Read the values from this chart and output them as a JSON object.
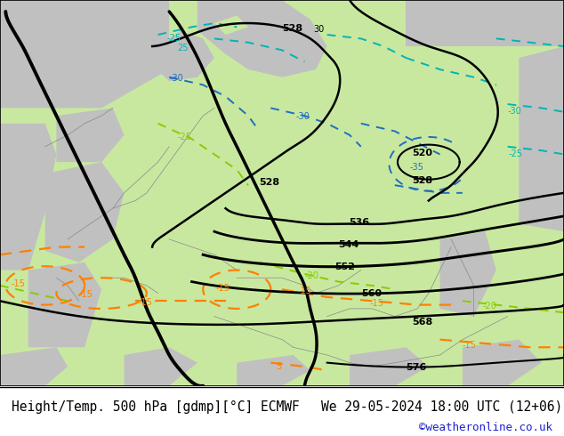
{
  "title_left": "Height/Temp. 500 hPa [gdmp][°C] ECMWF",
  "title_right": "We 29-05-2024 18:00 UTC (12+06)",
  "credit": "©weatheronline.co.uk",
  "bg_green": "#c8e8a0",
  "gray_land": "#c0c0c0",
  "border_color": "#888888",
  "title_fontsize": 10.5,
  "credit_color": "#2222cc",
  "fig_width": 6.34,
  "fig_height": 4.9,
  "dpi": 100
}
